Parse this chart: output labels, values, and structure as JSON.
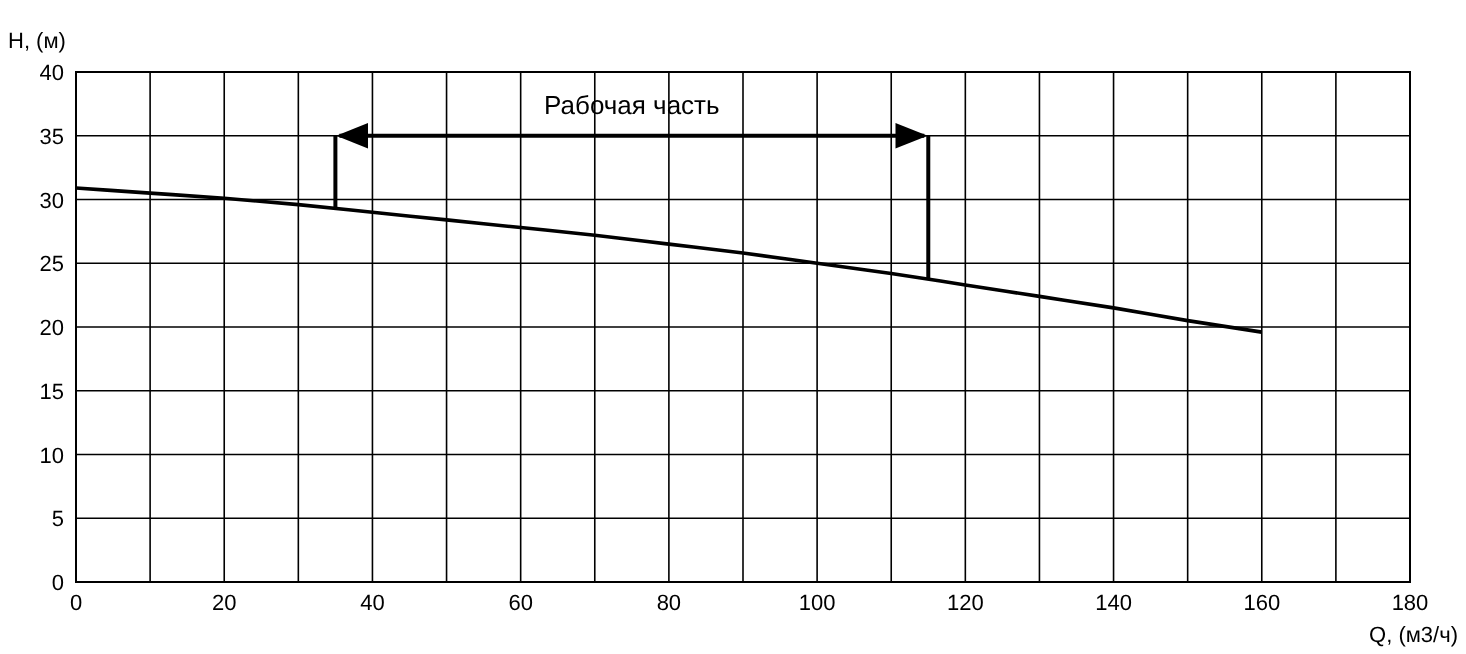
{
  "chart_data": {
    "type": "line",
    "xlabel": "Q, (м3/ч)",
    "ylabel": "H, (м)",
    "x": [
      0,
      10,
      20,
      30,
      40,
      50,
      60,
      70,
      80,
      90,
      100,
      110,
      120,
      130,
      140,
      150,
      160
    ],
    "series": [
      {
        "color": "#000000",
        "values": [
          30.9,
          30.5,
          30.1,
          29.6,
          29.0,
          28.4,
          27.8,
          27.2,
          26.5,
          25.8,
          25.0,
          24.2,
          23.3,
          22.4,
          21.5,
          20.5,
          19.6
        ]
      }
    ],
    "xlim": [
      0,
      180
    ],
    "xticks": [
      0,
      {
        "value": 10,
        "label": null
      },
      20,
      {
        "value": 30,
        "label": null
      },
      40,
      {
        "value": 50,
        "label": null
      },
      60,
      {
        "value": 70,
        "label": null
      },
      80,
      {
        "value": 90,
        "label": null
      },
      100,
      {
        "value": 110,
        "label": null
      },
      120,
      {
        "value": 130,
        "label": null
      },
      140,
      {
        "value": 150,
        "label": null
      },
      160,
      {
        "value": 170,
        "label": null
      },
      180
    ],
    "ylim": [
      0,
      40
    ],
    "yticks": [
      0,
      5,
      10,
      15,
      20,
      25,
      30,
      35,
      40
    ],
    "grid": true,
    "ref_lines": [
      {
        "axis": "x",
        "value": 35
      },
      {
        "axis": "x",
        "value": 115
      }
    ],
    "annotations": [
      "Рабочая часть"
    ]
  }
}
